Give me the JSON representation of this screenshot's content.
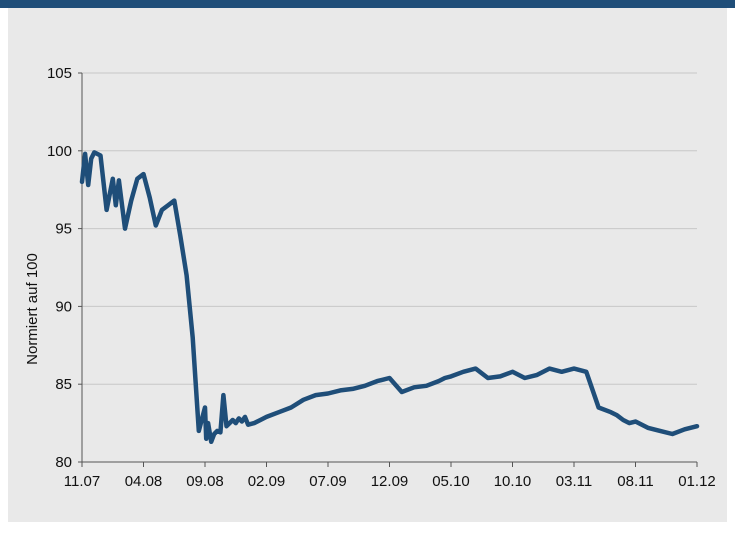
{
  "chart_data": {
    "type": "line",
    "title": "",
    "xlabel": "",
    "ylabel": "Normiert auf 100",
    "ylim": [
      80,
      105
    ],
    "yticks": [
      80,
      85,
      90,
      95,
      100,
      105
    ],
    "xticks": [
      "11.07",
      "04.08",
      "09.08",
      "02.09",
      "07.09",
      "12.09",
      "05.10",
      "10.10",
      "03.11",
      "08.11",
      "01.12"
    ],
    "grid": "horizontal",
    "line_color": "#1f4e79",
    "series": [
      {
        "name": "",
        "x": [
          0,
          0.05,
          0.1,
          0.15,
          0.2,
          0.3,
          0.4,
          0.5,
          0.55,
          0.6,
          0.7,
          0.8,
          0.9,
          1.0,
          1.1,
          1.2,
          1.3,
          1.4,
          1.5,
          1.6,
          1.7,
          1.8,
          1.9,
          2.0,
          2.02,
          2.05,
          2.1,
          2.15,
          2.2,
          2.25,
          2.3,
          2.35,
          2.4,
          2.45,
          2.5,
          2.55,
          2.6,
          2.65,
          2.7,
          2.8,
          2.9,
          3.0,
          3.2,
          3.4,
          3.6,
          3.8,
          4.0,
          4.2,
          4.4,
          4.6,
          4.8,
          5.0,
          5.2,
          5.4,
          5.6,
          5.8,
          5.9,
          6.0,
          6.2,
          6.4,
          6.6,
          6.8,
          7.0,
          7.2,
          7.4,
          7.6,
          7.8,
          8.0,
          8.2,
          8.4,
          8.6,
          8.7,
          8.8,
          8.9,
          9.0,
          9.2,
          9.4,
          9.6,
          9.8,
          10.0
        ],
        "y": [
          98.0,
          99.8,
          97.8,
          99.5,
          99.9,
          99.7,
          96.2,
          98.2,
          96.5,
          98.1,
          95.0,
          96.8,
          98.2,
          98.5,
          97.0,
          95.2,
          96.2,
          96.5,
          96.8,
          94.5,
          92.0,
          88.0,
          82.0,
          83.5,
          81.5,
          82.5,
          81.3,
          81.8,
          82.0,
          81.9,
          84.3,
          82.3,
          82.5,
          82.7,
          82.5,
          82.8,
          82.6,
          82.9,
          82.4,
          82.5,
          82.7,
          82.9,
          83.2,
          83.5,
          84.0,
          84.3,
          84.4,
          84.6,
          84.7,
          84.9,
          85.2,
          85.4,
          84.5,
          84.8,
          84.9,
          85.2,
          85.4,
          85.5,
          85.8,
          86.0,
          85.4,
          85.5,
          85.8,
          85.4,
          85.6,
          86.0,
          85.8,
          86.0,
          85.8,
          83.5,
          83.2,
          83.0,
          82.7,
          82.5,
          82.6,
          82.2,
          82.0,
          81.8,
          82.1,
          82.3
        ]
      }
    ]
  }
}
